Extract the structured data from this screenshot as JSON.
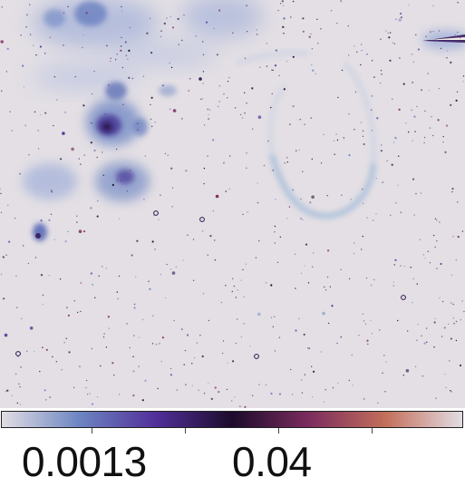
{
  "image": {
    "background_color": "#e3dfe4",
    "colormap": [
      "#e2dde3",
      "#6d86c2",
      "#51309a",
      "#1c0b2c",
      "#7b2c5e",
      "#c36f5b",
      "#e2dde3"
    ]
  },
  "colorbar": {
    "tick_labels": [
      "0.0013",
      "0.04"
    ]
  }
}
